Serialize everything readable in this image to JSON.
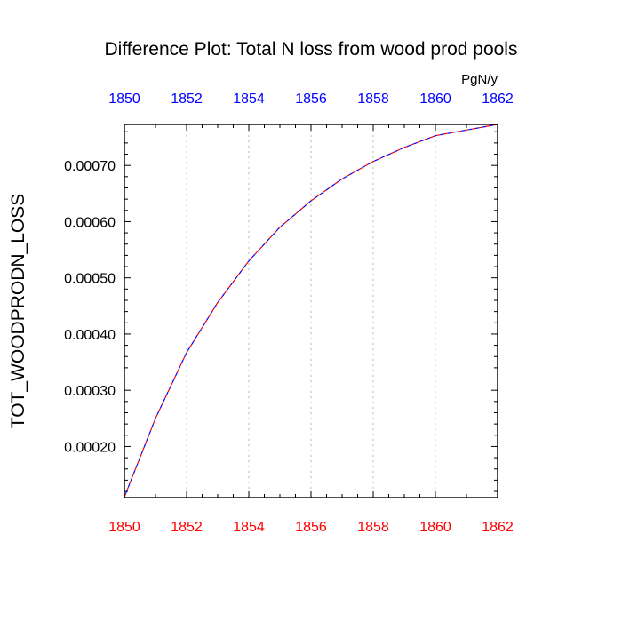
{
  "chart_data": {
    "type": "line",
    "title": "Difference Plot: Total N loss from wood prod pools",
    "units": "PgN/y",
    "ylabel": "TOT_WOODPRODN_LOSS",
    "xlabel": "",
    "xlim": [
      1850,
      1862
    ],
    "ylim": [
      0.000109,
      0.000773
    ],
    "x_ticks": [
      "1850",
      "1852",
      "1854",
      "1856",
      "1858",
      "1860",
      "1862"
    ],
    "y_ticks": [
      "0.00020",
      "0.00030",
      "0.00040",
      "0.00050",
      "0.00060",
      "0.00070"
    ],
    "grid": "vertical dotted at x ticks",
    "x": [
      1850,
      1851,
      1852,
      1853,
      1854,
      1855,
      1856,
      1857,
      1858,
      1859,
      1860,
      1861,
      1862
    ],
    "series": [
      {
        "values": [
          0.00011,
          0.00025,
          0.000367,
          0.000456,
          0.00053,
          0.00059,
          0.000637,
          0.000676,
          0.000707,
          0.000732,
          0.000753,
          0.000763,
          0.000773
        ],
        "colors": [
          "#ff0000",
          "#0000ff"
        ],
        "style": "dashed"
      }
    ],
    "colors": {
      "bottom_axis": "#ff0000",
      "top_axis": "#0000ff",
      "text": "#000000",
      "grid": "#bbbbbb"
    }
  }
}
